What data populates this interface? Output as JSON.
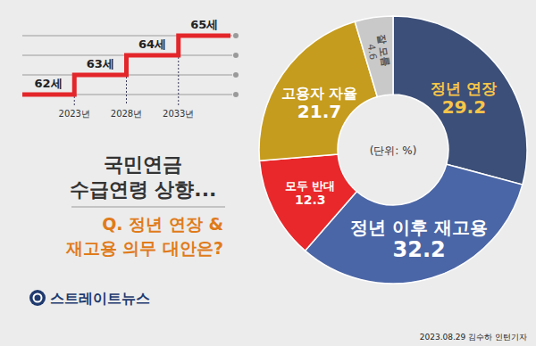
{
  "chart_data": {
    "type": "pie",
    "title": "국민연금 수급연령 상향...",
    "subtitle": "Q. 정년 연장 & 재고용 의무 대안은?",
    "categories": [
      "정년 연장",
      "정년 이후 재고용",
      "모두 반대",
      "고용자 자율",
      "잘 모름"
    ],
    "values": [
      29.2,
      32.2,
      12.3,
      21.7,
      4.6
    ],
    "colors": [
      "#3c4f78",
      "#4b66a6",
      "#e8282b",
      "#c69c1e",
      "#c9c9c9"
    ],
    "data_labels": true,
    "annotations": {
      "unit": "(단위: %)",
      "ages": [
        "62세",
        "63세",
        "64세",
        "65세"
      ],
      "years": [
        "2023년",
        "2028년",
        "2033년"
      ],
      "source": "스트레이트뉴스",
      "byline": "2023.08.29 김수하 인턴기자"
    }
  }
}
